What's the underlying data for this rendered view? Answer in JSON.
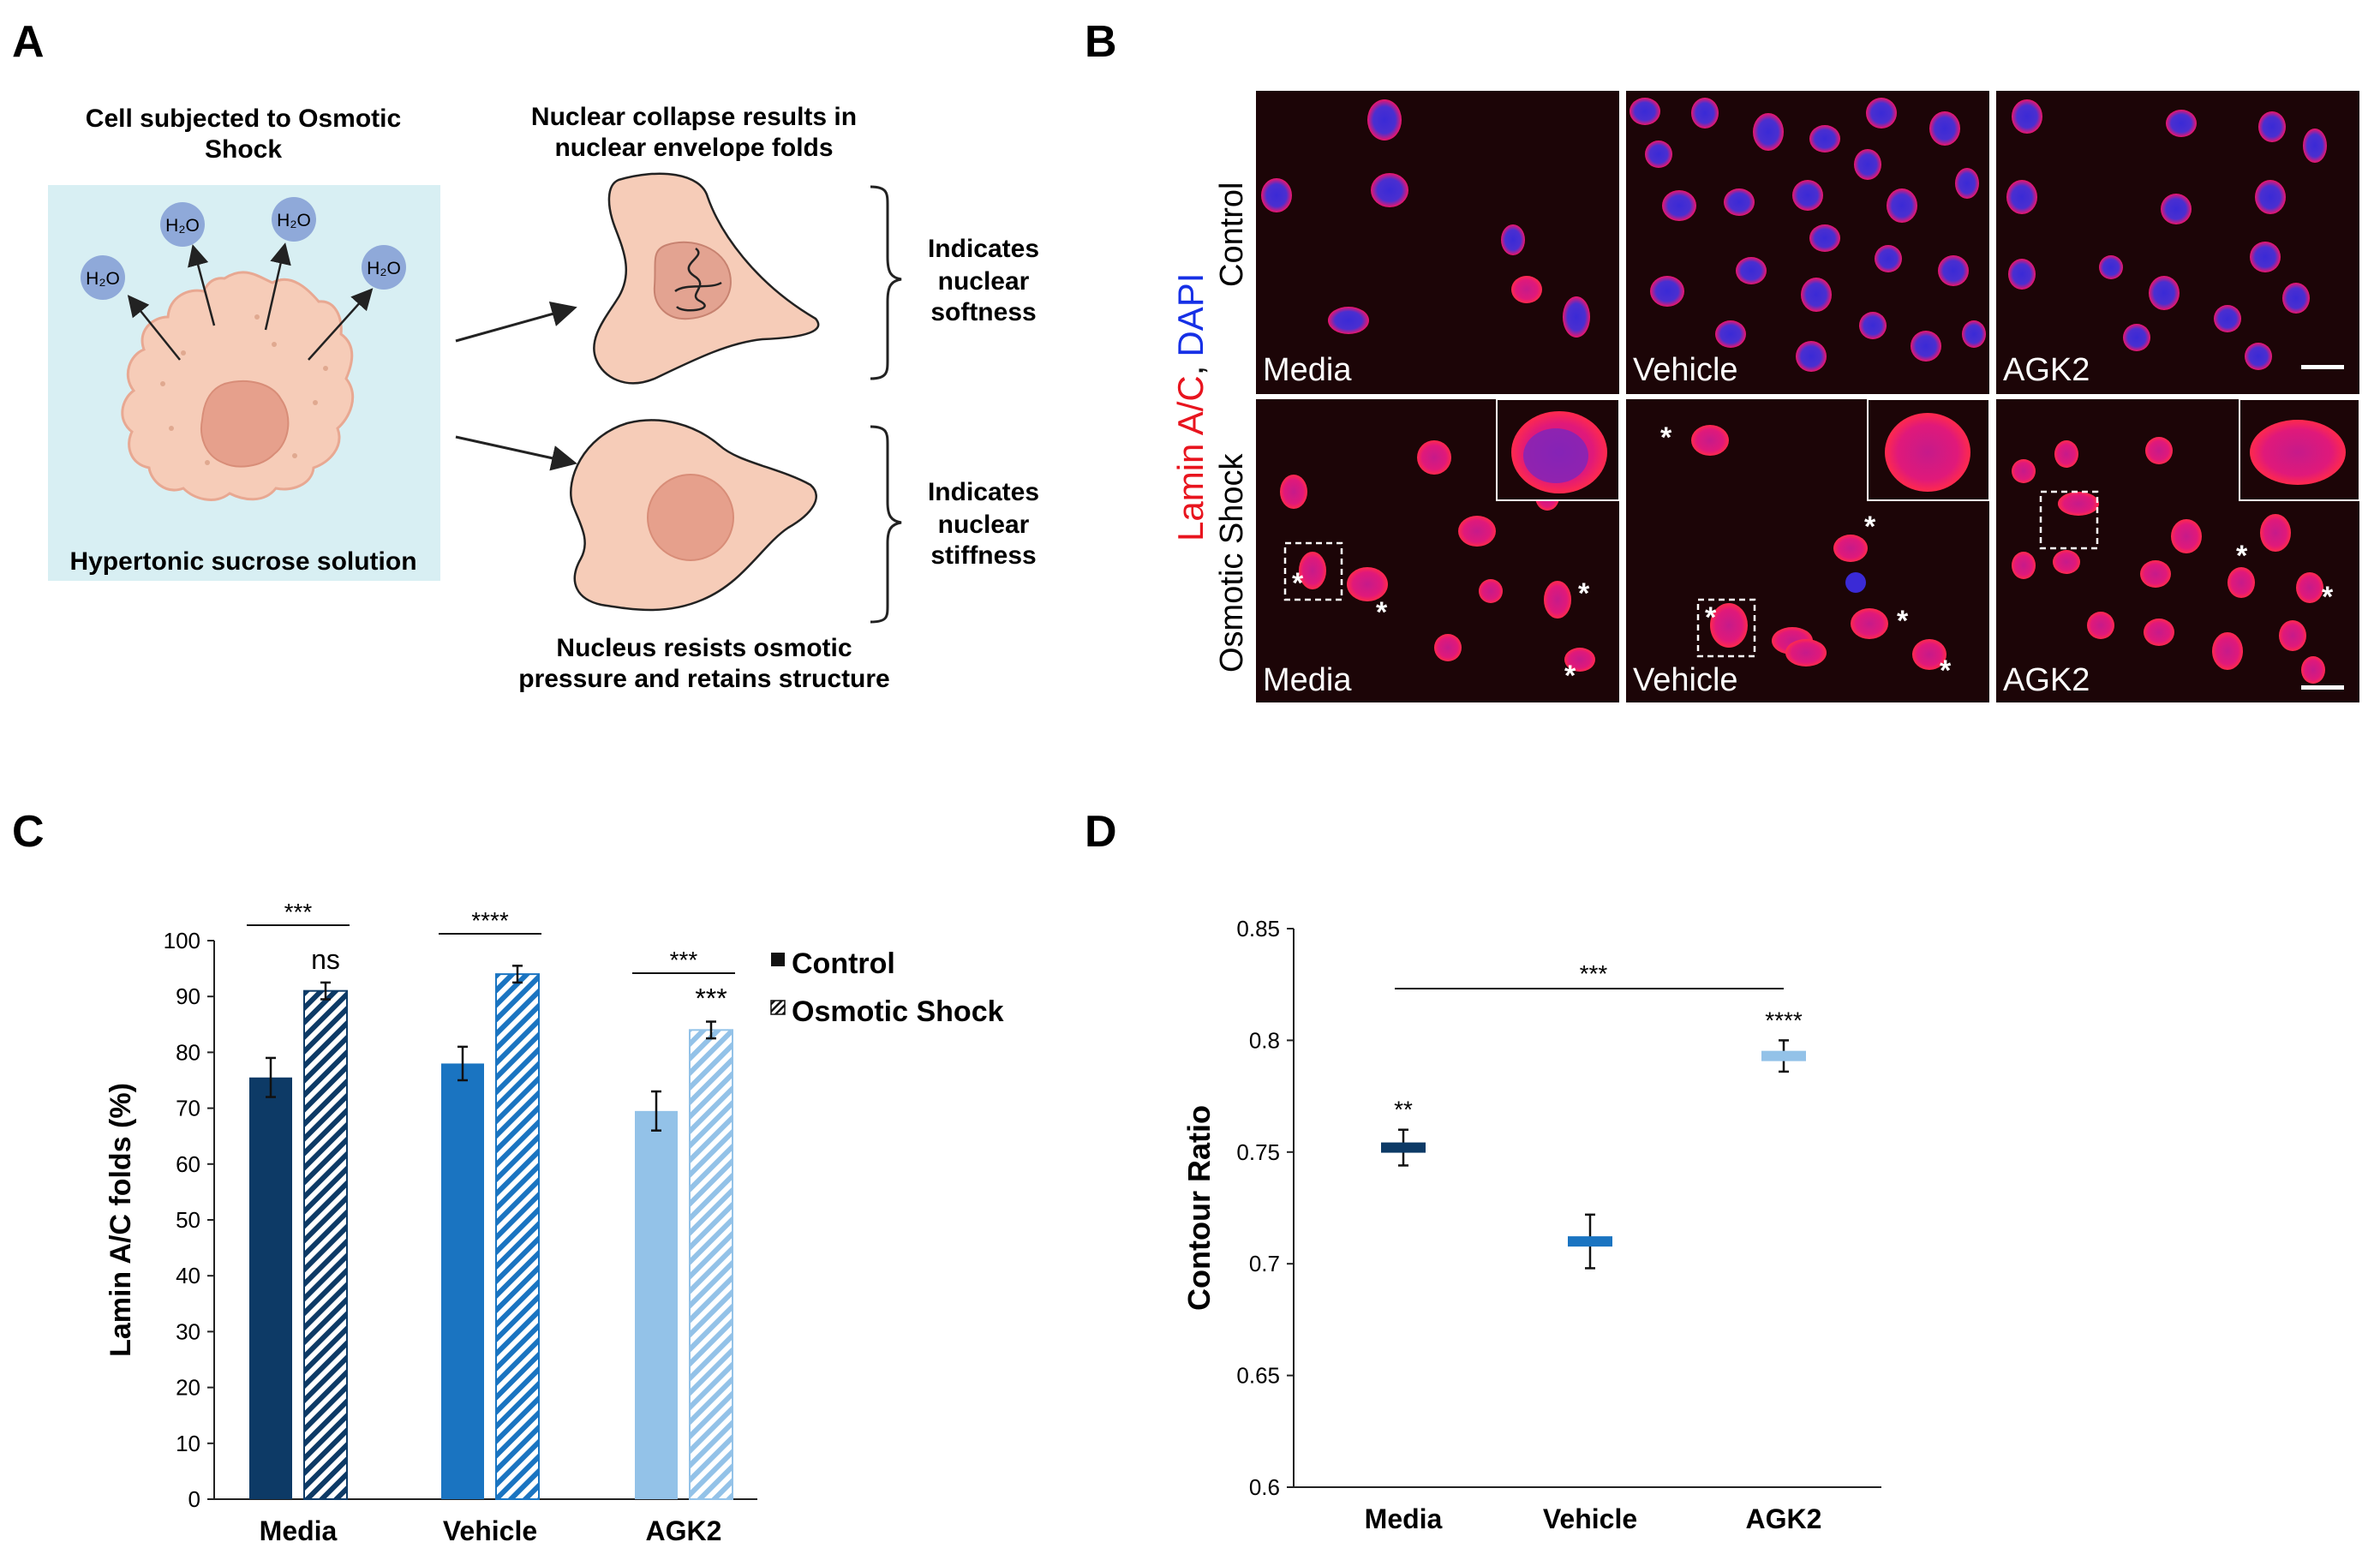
{
  "panels": {
    "a": {
      "letter": "A",
      "cell_title_line1": "Cell subjected to Osmotic",
      "cell_title_line2": "Shock",
      "solution_label": "Hypertonic sucrose solution",
      "water_label": "H₂O",
      "collapse_line1": "Nuclear collapse results in",
      "collapse_line2": "nuclear envelope folds",
      "softness_line1": "Indicates",
      "softness_line2": "nuclear",
      "softness_line3": "softness",
      "stiffness_line1": "Indicates",
      "stiffness_line2": "nuclear",
      "stiffness_line3": "stiffness",
      "resist_line1": "Nucleus resists osmotic",
      "resist_line2": "pressure and retains structure"
    },
    "b": {
      "letter": "B",
      "stain_lamin": "Lamin A/C",
      "stain_sep": ",",
      "stain_dapi": "DAPI",
      "row_control": "Control",
      "row_osmotic": "Osmotic Shock",
      "col_media": "Media",
      "col_vehicle": "Vehicle",
      "col_agk2": "AGK2",
      "asterisk": "*"
    },
    "c": {
      "letter": "C"
    },
    "d": {
      "letter": "D"
    }
  },
  "colors": {
    "media": "#0d3a66",
    "vehicle": "#1a74c1",
    "agk2": "#93c2e8",
    "panel_a_bg": "#d8eff3",
    "cell_fill": "#f6ccb8",
    "water": "#8fa9d9"
  },
  "chart_data": [
    {
      "type": "bar",
      "ylabel": "Lamin A/C folds (%)",
      "xlabel": "",
      "ylim": [
        0,
        100
      ],
      "yticks": [
        "0",
        "10",
        "20",
        "30",
        "40",
        "50",
        "60",
        "70",
        "80",
        "90",
        "100"
      ],
      "categories": [
        "Media",
        "Vehicle",
        "AGK2"
      ],
      "series": [
        {
          "name": "Control",
          "values": [
            75.5,
            78,
            69.5
          ],
          "errors": [
            3.5,
            3,
            3.5
          ]
        },
        {
          "name": "Osmotic Shock",
          "values": [
            91,
            94,
            84
          ],
          "errors": [
            1.5,
            1.5,
            1.5
          ]
        }
      ],
      "pair_significance": [
        "***",
        "****",
        "***"
      ],
      "shock_annotations": [
        "ns",
        "",
        "***"
      ],
      "legend_position": "top-right"
    },
    {
      "type": "scatter",
      "ylabel": "Contour Ratio",
      "xlabel": "",
      "ylim": [
        0.6,
        0.85
      ],
      "yticks": [
        "0.6",
        "0.65",
        "0.7",
        "0.75",
        "0.8",
        "0.85"
      ],
      "categories": [
        "Media",
        "Vehicle",
        "AGK2"
      ],
      "values": [
        0.752,
        0.71,
        0.793
      ],
      "errors": [
        0.008,
        0.012,
        0.007
      ],
      "point_annotations": [
        "**",
        "",
        "****"
      ],
      "bracket_label": "***"
    }
  ]
}
